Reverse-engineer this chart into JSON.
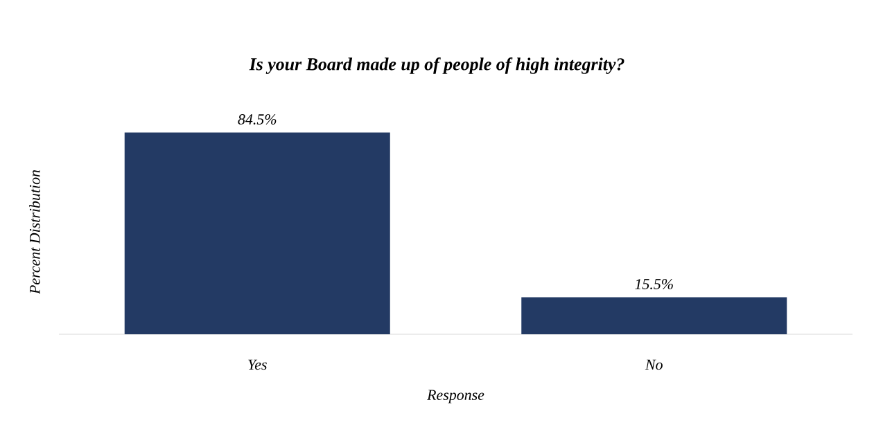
{
  "chart_data": {
    "type": "bar",
    "title": "Is your Board made up of people of high integrity?",
    "xlabel": "Response",
    "ylabel": "Percent Distribution",
    "categories": [
      "Yes",
      "No"
    ],
    "values": [
      84.5,
      15.5
    ],
    "value_labels": [
      "84.5%",
      "15.5%"
    ],
    "color": "#233a64"
  }
}
